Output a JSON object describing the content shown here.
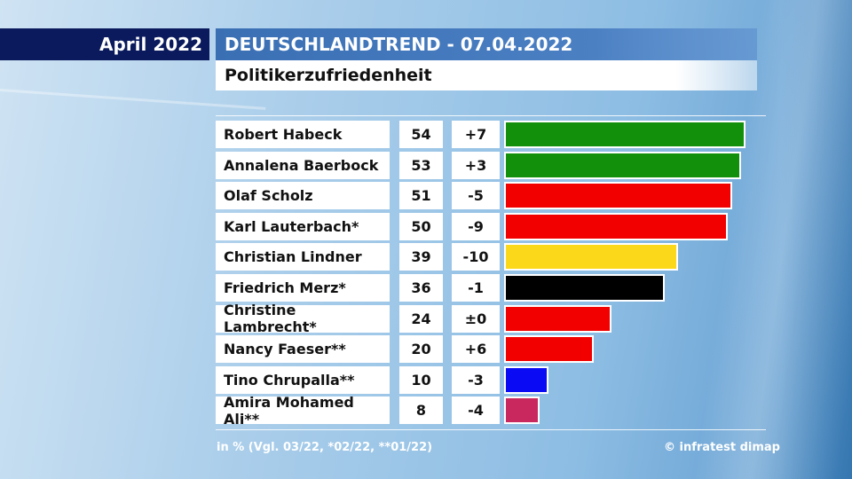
{
  "header": {
    "date_label": "April 2022",
    "title": "DEUTSCHLANDTREND - 07.04.2022",
    "subtitle": "Politikerzufriedenheit"
  },
  "chart_data": {
    "type": "bar",
    "orientation": "horizontal",
    "title": "Politikerzufriedenheit",
    "unit": "in %",
    "xlim": [
      0,
      54
    ],
    "rows": [
      {
        "name": "Robert Habeck",
        "value": 54,
        "change": "+7",
        "color": "#12900c"
      },
      {
        "name": "Annalena Baerbock",
        "value": 53,
        "change": "+3",
        "color": "#12900c"
      },
      {
        "name": "Olaf Scholz",
        "value": 51,
        "change": "-5",
        "color": "#f20000"
      },
      {
        "name": "Karl Lauterbach*",
        "value": 50,
        "change": "-9",
        "color": "#f20000"
      },
      {
        "name": "Christian Lindner",
        "value": 39,
        "change": "-10",
        "color": "#fcd81b"
      },
      {
        "name": "Friedrich Merz*",
        "value": 36,
        "change": "-1",
        "color": "#000000"
      },
      {
        "name": "Christine Lambrecht*",
        "value": 24,
        "change": "±0",
        "color": "#f20000"
      },
      {
        "name": "Nancy Faeser**",
        "value": 20,
        "change": "+6",
        "color": "#f20000"
      },
      {
        "name": "Tino Chrupalla**",
        "value": 10,
        "change": "-3",
        "color": "#0a0af5"
      },
      {
        "name": "Amira Mohamed Ali**",
        "value": 8,
        "change": "-4",
        "color": "#c8285e"
      }
    ]
  },
  "footer": {
    "note": "in % (Vgl. 03/22, *02/22, **01/22)",
    "source": "© infratest dimap"
  }
}
